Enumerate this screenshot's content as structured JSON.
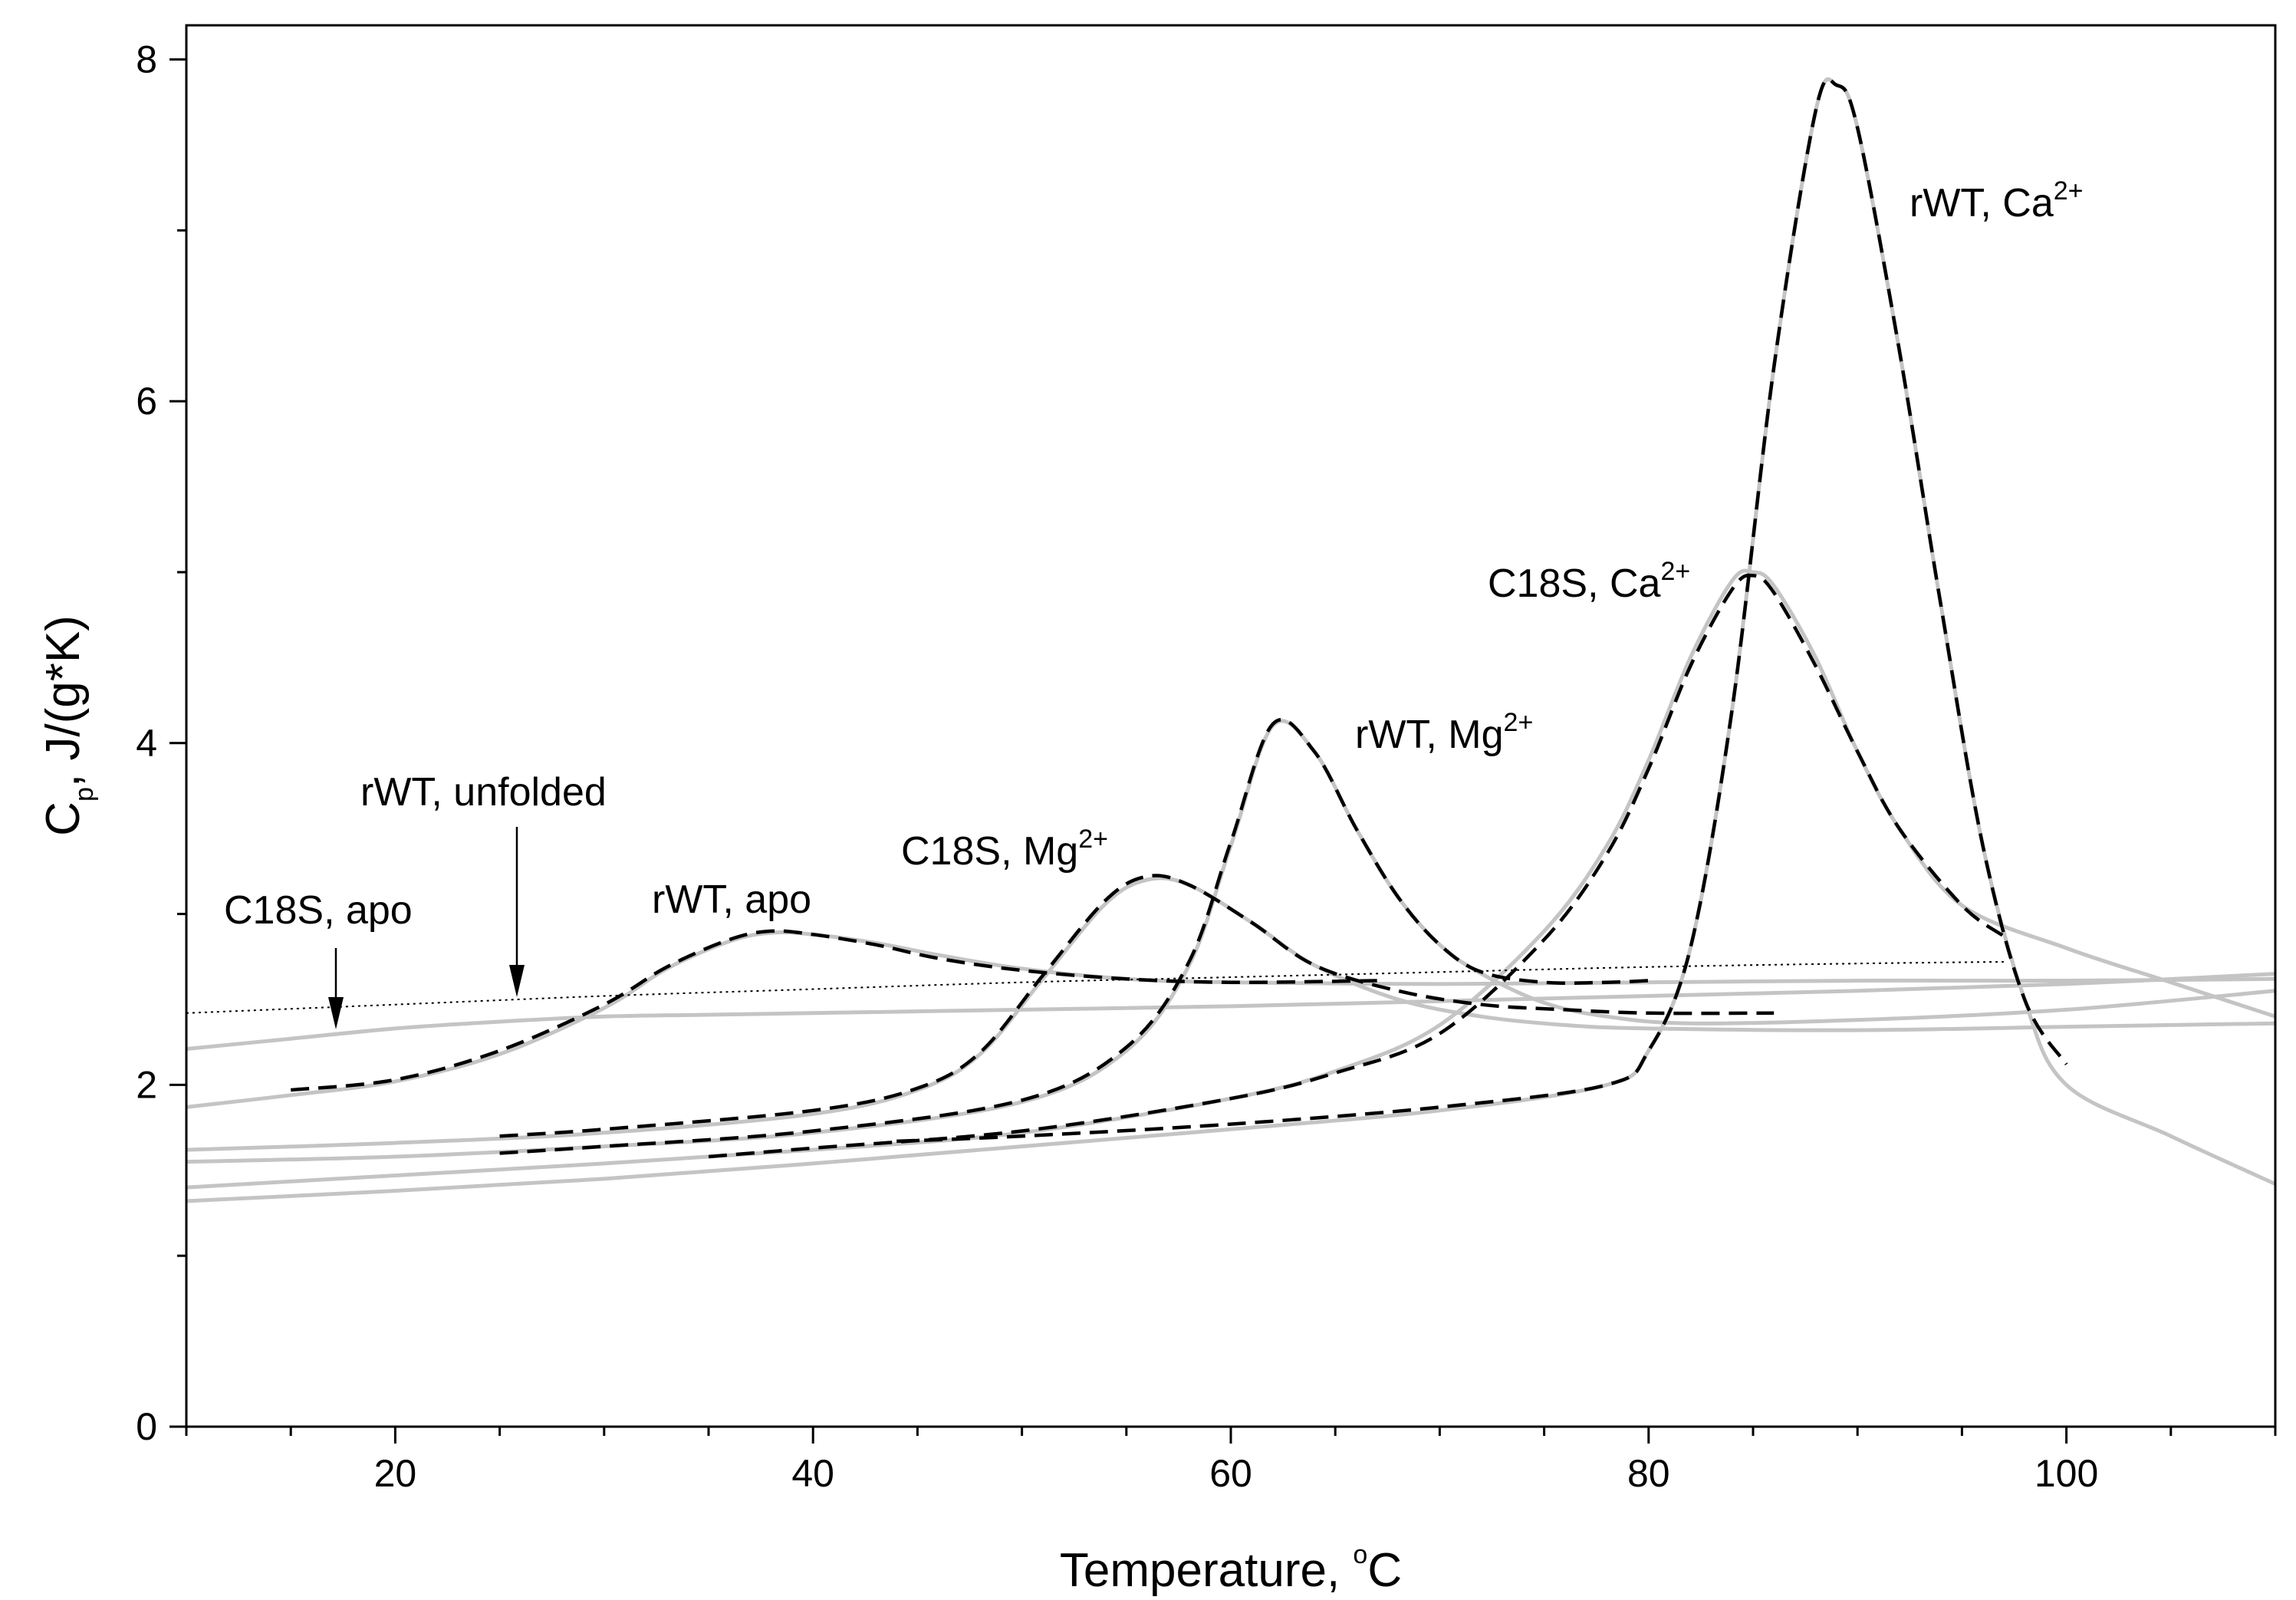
{
  "chart_data": {
    "type": "line",
    "xlabel": "Temperature, °C",
    "ylabel": "C_p, J/(g*K)",
    "xlim": [
      10,
      110
    ],
    "ylim": [
      0,
      8.2
    ],
    "xticks": [
      20,
      40,
      60,
      80,
      100
    ],
    "yticks": [
      0,
      2,
      4,
      6,
      8
    ],
    "grid": false,
    "legend": "none",
    "colors": {
      "experimental": "#c4c4c4",
      "fit": "#000000",
      "unfolded": "#000000",
      "axis": "#000000"
    },
    "series": [
      {
        "name": "C18S, apo",
        "style": "experimental",
        "x": [
          10,
          15,
          20,
          25,
          30,
          35,
          40,
          50,
          60,
          70,
          80,
          90,
          100,
          110
        ],
        "y": [
          2.21,
          2.27,
          2.33,
          2.37,
          2.4,
          2.41,
          2.42,
          2.44,
          2.46,
          2.49,
          2.52,
          2.55,
          2.59,
          2.65
        ]
      },
      {
        "name": "rWT, unfolded",
        "style": "unfolded",
        "x": [
          10,
          20,
          30,
          40,
          50,
          60,
          70,
          80,
          90,
          97
        ],
        "y": [
          2.42,
          2.47,
          2.52,
          2.56,
          2.6,
          2.63,
          2.66,
          2.69,
          2.71,
          2.72
        ]
      },
      {
        "name": "rWT, apo (experimental)",
        "style": "experimental",
        "x": [
          10,
          15,
          20,
          25,
          30,
          33,
          36,
          38,
          40,
          43,
          46,
          50,
          55,
          60,
          70,
          80,
          90,
          100,
          110
        ],
        "y": [
          1.87,
          1.94,
          2.02,
          2.18,
          2.45,
          2.68,
          2.84,
          2.89,
          2.88,
          2.83,
          2.76,
          2.68,
          2.62,
          2.6,
          2.59,
          2.6,
          2.61,
          2.61,
          2.62
        ]
      },
      {
        "name": "rWT, apo (fit)",
        "style": "fit",
        "x": [
          15,
          20,
          25,
          30,
          33,
          36,
          38,
          40,
          43,
          46,
          50,
          55,
          60,
          67
        ],
        "y": [
          1.97,
          2.03,
          2.2,
          2.47,
          2.69,
          2.85,
          2.9,
          2.88,
          2.82,
          2.74,
          2.67,
          2.62,
          2.6,
          2.61
        ]
      },
      {
        "name": "C18S, Mg2+ (experimental)",
        "style": "experimental",
        "x": [
          10,
          20,
          30,
          40,
          45,
          48,
          51,
          54,
          56,
          58,
          61,
          64,
          68,
          72,
          76,
          80,
          90,
          100,
          110
        ],
        "y": [
          1.62,
          1.66,
          1.72,
          1.83,
          1.97,
          2.18,
          2.62,
          3.06,
          3.2,
          3.17,
          2.95,
          2.7,
          2.5,
          2.4,
          2.35,
          2.33,
          2.32,
          2.34,
          2.36
        ]
      },
      {
        "name": "C18S, Mg2+ (fit)",
        "style": "fit",
        "x": [
          25,
          30,
          40,
          45,
          48,
          51,
          54,
          56,
          58,
          61,
          64,
          68,
          72,
          76,
          80,
          86
        ],
        "y": [
          1.7,
          1.74,
          1.85,
          1.98,
          2.19,
          2.64,
          3.08,
          3.22,
          3.17,
          2.95,
          2.7,
          2.55,
          2.47,
          2.44,
          2.42,
          2.42
        ]
      },
      {
        "name": "rWT, Mg2+ (experimental)",
        "style": "experimental",
        "x": [
          10,
          20,
          30,
          40,
          50,
          55,
          58,
          60,
          62,
          64,
          66,
          68,
          70,
          72,
          75,
          78,
          82,
          90,
          100,
          110
        ],
        "y": [
          1.55,
          1.58,
          1.64,
          1.72,
          1.9,
          2.2,
          2.7,
          3.4,
          4.1,
          3.95,
          3.5,
          3.1,
          2.82,
          2.65,
          2.48,
          2.4,
          2.36,
          2.38,
          2.44,
          2.55
        ]
      },
      {
        "name": "rWT, Mg2+ (fit)",
        "style": "fit",
        "x": [
          25,
          30,
          40,
          50,
          55,
          58,
          60,
          62,
          64,
          66,
          68,
          70,
          72,
          75,
          78,
          80
        ],
        "y": [
          1.6,
          1.64,
          1.73,
          1.91,
          2.22,
          2.72,
          3.42,
          4.11,
          3.95,
          3.5,
          3.1,
          2.82,
          2.66,
          2.6,
          2.6,
          2.61
        ]
      },
      {
        "name": "C18S, Ca2+ (experimental)",
        "style": "experimental",
        "x": [
          10,
          20,
          30,
          40,
          50,
          60,
          65,
          70,
          75,
          78,
          80,
          82,
          84,
          85,
          86,
          88,
          90,
          92,
          95,
          100,
          105,
          110
        ],
        "y": [
          1.4,
          1.47,
          1.54,
          1.62,
          1.72,
          1.92,
          2.08,
          2.35,
          2.9,
          3.4,
          3.9,
          4.5,
          4.95,
          5.0,
          4.92,
          4.5,
          3.95,
          3.5,
          3.05,
          2.8,
          2.6,
          2.4
        ]
      },
      {
        "name": "C18S, Ca2+ (fit)",
        "style": "fit",
        "x": [
          35,
          40,
          50,
          60,
          65,
          70,
          75,
          78,
          80,
          82,
          84,
          85,
          86,
          88,
          90,
          92,
          95,
          97
        ],
        "y": [
          1.58,
          1.63,
          1.73,
          1.92,
          2.07,
          2.3,
          2.85,
          3.35,
          3.85,
          4.45,
          4.9,
          4.98,
          4.88,
          4.45,
          3.95,
          3.5,
          3.05,
          2.87
        ]
      },
      {
        "name": "rWT, Ca2+ (experimental)",
        "style": "experimental",
        "x": [
          10,
          20,
          30,
          40,
          50,
          60,
          70,
          78,
          80,
          82,
          84,
          86,
          88,
          89,
          90,
          92,
          94,
          96,
          98,
          100,
          105,
          110
        ],
        "y": [
          1.32,
          1.38,
          1.45,
          1.54,
          1.64,
          1.74,
          1.85,
          2.0,
          2.2,
          2.8,
          4.2,
          6.2,
          7.7,
          7.85,
          7.6,
          6.3,
          4.8,
          3.4,
          2.5,
          2.0,
          1.7,
          1.42
        ]
      },
      {
        "name": "rWT, Ca2+ (fit)",
        "style": "fit",
        "x": [
          44,
          50,
          60,
          70,
          78,
          80,
          82,
          84,
          86,
          88,
          89,
          90,
          92,
          94,
          96,
          98,
          100
        ],
        "y": [
          1.67,
          1.7,
          1.77,
          1.87,
          2.0,
          2.2,
          2.8,
          4.2,
          6.2,
          7.7,
          7.85,
          7.6,
          6.3,
          4.8,
          3.4,
          2.5,
          2.12
        ]
      }
    ],
    "annotations": [
      {
        "text": "rWT, Ca",
        "sup": "2+"
      },
      {
        "text": "C18S, Ca",
        "sup": "2+"
      },
      {
        "text": "rWT, Mg",
        "sup": "2+"
      },
      {
        "text": "C18S, Mg",
        "sup": "2+"
      },
      {
        "text": "rWT, apo",
        "sup": ""
      },
      {
        "text": "rWT, unfolded",
        "sup": ""
      },
      {
        "text": "C18S, apo",
        "sup": ""
      }
    ],
    "axis_titles": {
      "x_main": "Temperature, ",
      "x_sup": "o",
      "x_unit": "C",
      "y_main": "C",
      "y_sub": "p",
      "y_rest": ", J/(g*K)"
    }
  }
}
